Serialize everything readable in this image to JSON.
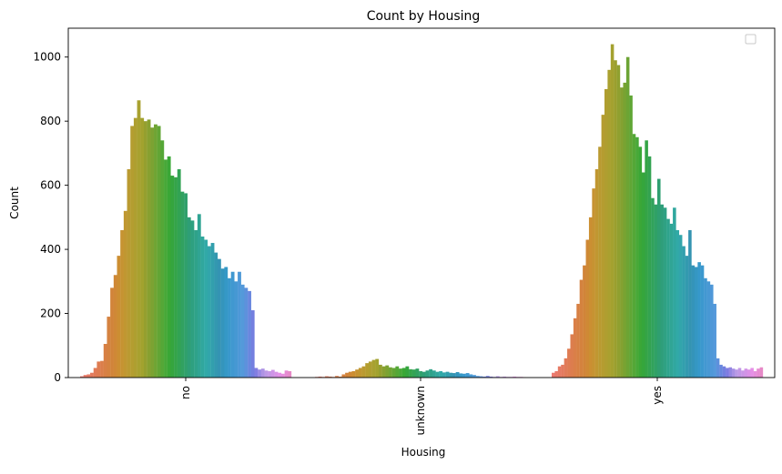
{
  "chart_data": {
    "type": "bar",
    "title": "Count by Housing",
    "xlabel": "Housing",
    "ylabel": "Count",
    "categories": [
      "no",
      "unknown",
      "yes"
    ],
    "ylim": [
      0,
      1090
    ],
    "yticks": [
      0,
      200,
      400,
      600,
      800,
      1000
    ],
    "grid": false,
    "legend": "top-right (empty)",
    "hue_levels": 78,
    "series_values": {
      "no": [
        4,
        8,
        10,
        15,
        30,
        50,
        52,
        105,
        190,
        280,
        320,
        380,
        460,
        520,
        650,
        785,
        810,
        865,
        810,
        800,
        805,
        780,
        790,
        785,
        740,
        680,
        690,
        630,
        625,
        650,
        580,
        575,
        500,
        490,
        460,
        510,
        440,
        430,
        410,
        420,
        390,
        370,
        340,
        345,
        310,
        330,
        300,
        330,
        290,
        280,
        270,
        210,
        30,
        25,
        28,
        22,
        20,
        24,
        18,
        15,
        12,
        22,
        20
      ],
      "unknown": [
        2,
        3,
        2,
        4,
        3,
        2,
        5,
        3,
        10,
        15,
        18,
        20,
        25,
        30,
        35,
        45,
        50,
        55,
        58,
        40,
        35,
        38,
        32,
        30,
        35,
        28,
        30,
        35,
        26,
        25,
        28,
        20,
        18,
        22,
        26,
        22,
        18,
        20,
        16,
        18,
        15,
        14,
        17,
        13,
        12,
        14,
        10,
        8,
        5,
        4,
        3,
        5,
        3,
        2,
        4,
        2,
        3,
        2,
        2,
        3,
        2,
        2,
        1
      ],
      "yes": [
        15,
        20,
        35,
        40,
        60,
        90,
        135,
        185,
        230,
        305,
        350,
        430,
        500,
        590,
        650,
        720,
        820,
        900,
        960,
        1040,
        990,
        975,
        905,
        920,
        1000,
        880,
        760,
        750,
        720,
        640,
        740,
        690,
        560,
        540,
        620,
        540,
        530,
        495,
        480,
        530,
        460,
        445,
        410,
        380,
        460,
        350,
        345,
        360,
        350,
        310,
        300,
        290,
        230,
        60,
        40,
        35,
        30,
        32,
        28,
        25,
        30,
        22,
        28,
        25,
        30,
        20,
        28,
        32
      ]
    }
  }
}
